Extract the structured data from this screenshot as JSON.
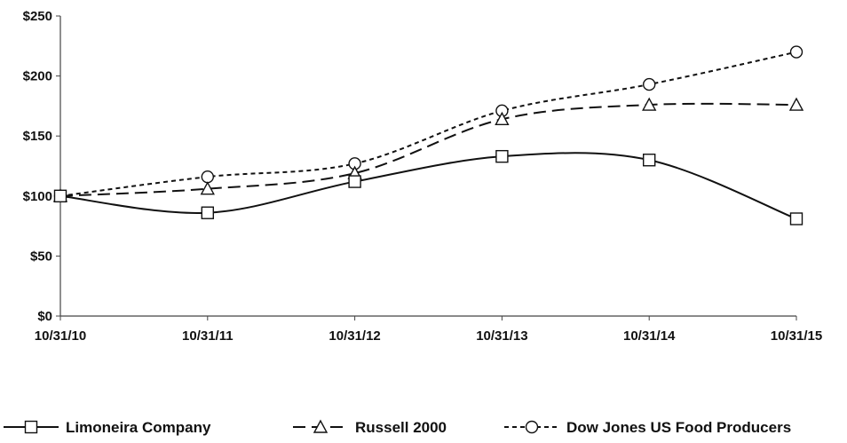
{
  "chart_data": {
    "type": "line",
    "categories": [
      "10/31/10",
      "10/31/11",
      "10/31/12",
      "10/31/13",
      "10/31/14",
      "10/31/15"
    ],
    "series": [
      {
        "name": "Limoneira Company",
        "values": [
          100,
          86,
          112,
          133,
          130,
          81
        ],
        "marker": "square",
        "dash": "solid",
        "color": "#111111"
      },
      {
        "name": "Russell 2000",
        "values": [
          100,
          106,
          119,
          164,
          176,
          176
        ],
        "marker": "triangle",
        "dash": "long-dash",
        "color": "#111111"
      },
      {
        "name": "Dow Jones US Food Producers",
        "values": [
          100,
          116,
          127,
          171,
          193,
          220
        ],
        "marker": "circle",
        "dash": "short-dash",
        "color": "#111111"
      }
    ],
    "y_ticks": [
      "$0",
      "$50",
      "$100",
      "$150",
      "$200",
      "$250"
    ],
    "ylim": [
      0,
      250
    ],
    "grid": false,
    "legend_position": "bottom",
    "smooth": true
  }
}
